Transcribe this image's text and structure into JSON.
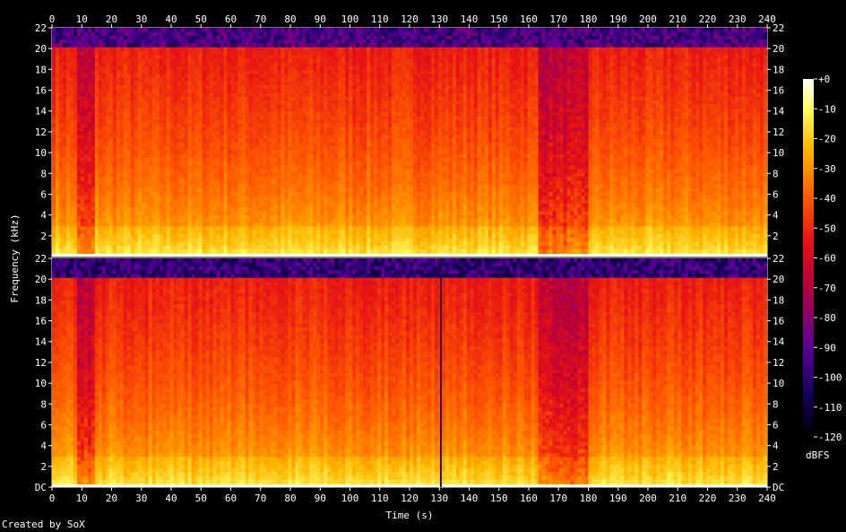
{
  "credit": "Created by SoX",
  "chart_data": {
    "type": "heatmap",
    "xlabel": "Time (s)",
    "ylabel": "Frequency (kHz)",
    "xlim": [
      0,
      240
    ],
    "ylim": [
      0,
      22
    ],
    "x_ticks": [
      "0",
      "10",
      "20",
      "30",
      "40",
      "50",
      "60",
      "70",
      "80",
      "90",
      "100",
      "110",
      "120",
      "130",
      "140",
      "150",
      "160",
      "170",
      "180",
      "190",
      "200",
      "210",
      "220",
      "230",
      "240"
    ],
    "y_ticks": [
      "DC",
      "2",
      "4",
      "6",
      "8",
      "10",
      "12",
      "14",
      "16",
      "18",
      "20",
      "22"
    ],
    "y_ticks_upper": [
      "2",
      "4",
      "6",
      "8",
      "10",
      "12",
      "14",
      "16",
      "18",
      "20",
      "22"
    ],
    "colorbar": {
      "label": "dBFS",
      "range": [
        -120,
        0
      ],
      "ticks": [
        "+0",
        "-10",
        "-20",
        "-30",
        "-40",
        "-50",
        "-60",
        "-70",
        "-80",
        "-90",
        "-100",
        "-110",
        "-120"
      ]
    },
    "channels": [
      {
        "name": "",
        "cutoff_khz": 20,
        "low_band_db": -12,
        "mid_band_db": -38,
        "high_band_db": -52,
        "above_cutoff_db": -105,
        "quiet_segments_s": [
          [
            9,
            14
          ],
          [
            163,
            180
          ]
        ]
      },
      {
        "name": "",
        "cutoff_khz": 20,
        "low_band_db": -12,
        "mid_band_db": -38,
        "high_band_db": -52,
        "above_cutoff_db": -110,
        "quiet_segments_s": [
          [
            9,
            14
          ],
          [
            163,
            180
          ]
        ],
        "transient_s": 130.5
      }
    ],
    "colors": [
      "#000000",
      "#14005a",
      "#5a0096",
      "#b4003c",
      "#e61414",
      "#ff5a00",
      "#ffb400",
      "#ffff64",
      "#ffffff"
    ]
  }
}
